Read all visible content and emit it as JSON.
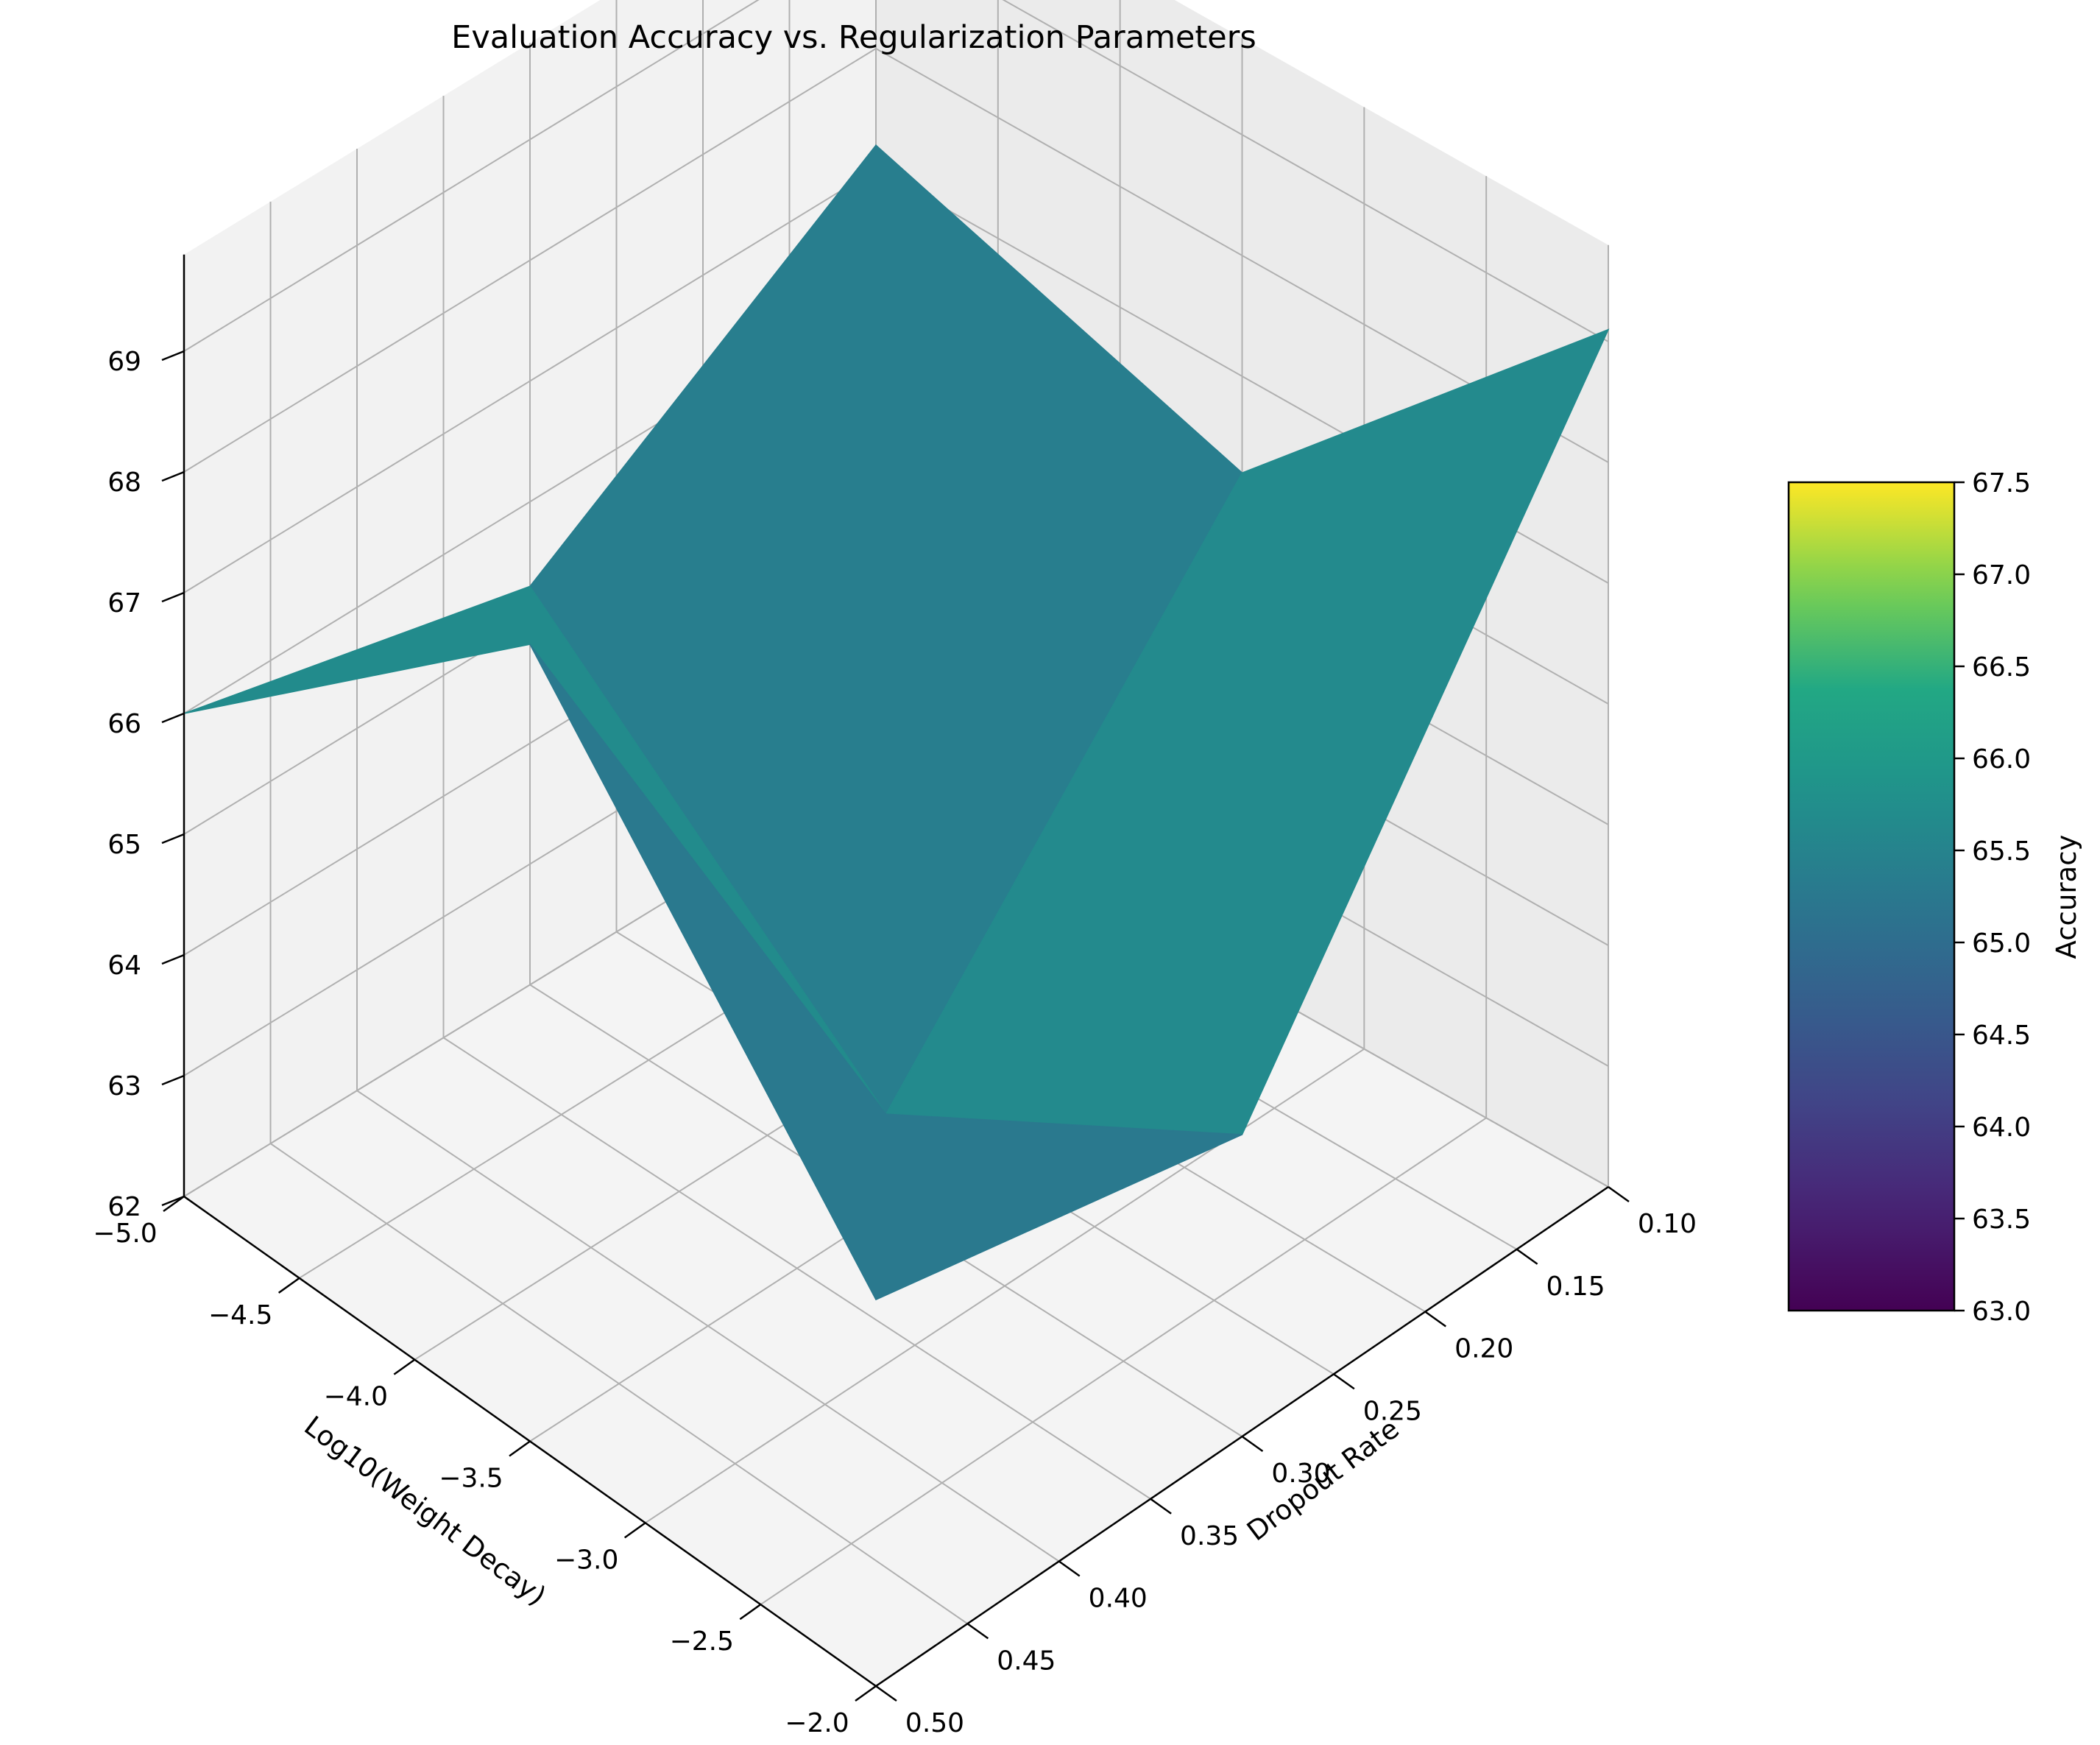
{
  "chart_data": {
    "type": "surface",
    "title": "Evaluation Accuracy vs. Regularization Parameters",
    "xlabel": "Log10(Weight Decay)",
    "ylabel": "Dropout Rate",
    "zlabel": "",
    "colorbar_label": "Accuracy",
    "colormap": "viridis",
    "x": [
      -5.0,
      -3.5,
      -2.0
    ],
    "y": [
      0.1,
      0.3,
      0.5
    ],
    "z": [
      [
        67.2,
        66.2,
        69.1
      ],
      [
        65.3,
        62.8,
        64.5
      ],
      [
        66.0,
        68.6,
        65.2
      ]
    ],
    "xlim": [
      -5.0,
      -2.0
    ],
    "ylim": [
      0.1,
      0.5
    ],
    "zlim": [
      62,
      69.5
    ],
    "color_range": [
      63.0,
      67.5
    ],
    "x_ticks": [
      "−5.0",
      "−4.5",
      "−4.0",
      "−3.5",
      "−3.0",
      "−2.5",
      "−2.0"
    ],
    "y_ticks": [
      "0.10",
      "0.15",
      "0.20",
      "0.25",
      "0.30",
      "0.35",
      "0.40",
      "0.45",
      "0.50"
    ],
    "z_ticks": [
      "62",
      "63",
      "64",
      "65",
      "66",
      "67",
      "68",
      "69"
    ],
    "colorbar_ticks": [
      "63.0",
      "63.5",
      "64.0",
      "64.5",
      "65.0",
      "65.5",
      "66.0",
      "66.5",
      "67.0",
      "67.5"
    ],
    "grid": true,
    "colors": {
      "pane_left": "#f2f2f2",
      "pane_right": "#ebebeb",
      "pane_floor": "#f4f4f4",
      "grid": "#b0b0b0"
    }
  }
}
